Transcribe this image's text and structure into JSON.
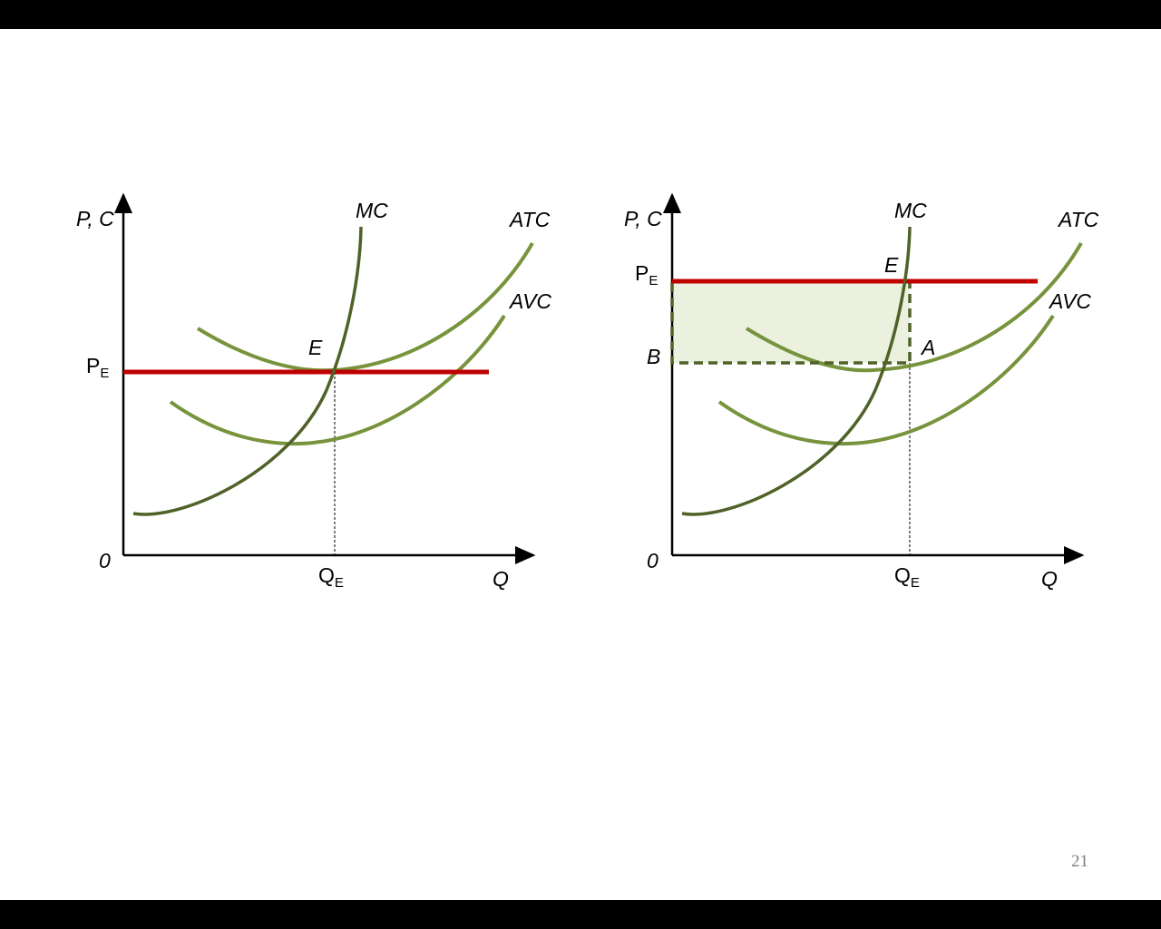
{
  "left_panel": {
    "y_axis_label": "P, C",
    "origin_label": "0",
    "x_axis_label": "Q",
    "curves": {
      "mc": "MC",
      "atc": "ATC",
      "avc": "AVC"
    },
    "equilibrium_label": "E",
    "price_label": {
      "main": "P",
      "sub": "E"
    },
    "quantity_label": {
      "main": "Q",
      "sub": "E"
    }
  },
  "right_panel": {
    "y_axis_label": "P, C",
    "origin_label": "0",
    "x_axis_label": "Q",
    "curves": {
      "mc": "MC",
      "atc": "ATC",
      "avc": "AVC"
    },
    "equilibrium_label": "E",
    "price_label": {
      "main": "P",
      "sub": "E"
    },
    "quantity_label": {
      "main": "Q",
      "sub": "E"
    },
    "point_b": "B",
    "point_a": "A"
  },
  "page_number": "21"
}
